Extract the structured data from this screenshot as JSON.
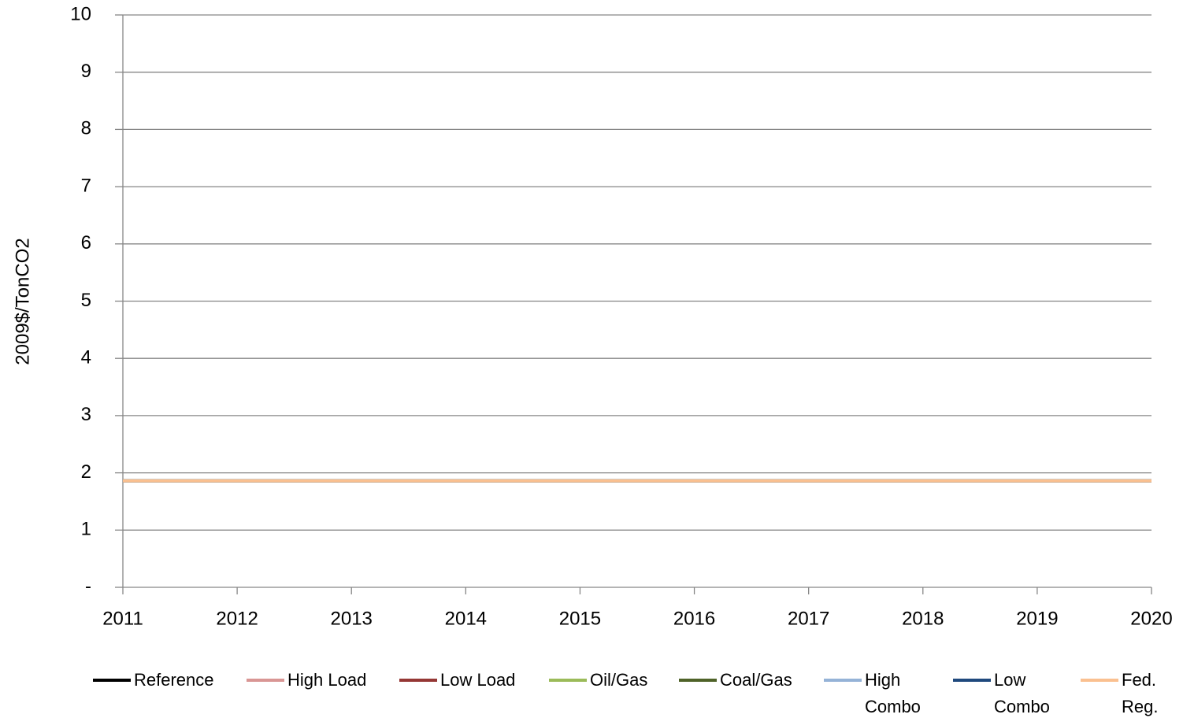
{
  "chart_data": {
    "type": "line",
    "y_label": "2009$/TonCO2",
    "x": [
      2011,
      2012,
      2013,
      2014,
      2015,
      2016,
      2017,
      2018,
      2019,
      2020
    ],
    "xlim": [
      2011,
      2020
    ],
    "xticks": [
      2011,
      2012,
      2013,
      2014,
      2015,
      2016,
      2017,
      2018,
      2019,
      2020
    ],
    "ylim": [
      0,
      10
    ],
    "yticks": [
      {
        "value": 0,
        "label": "-"
      },
      1,
      2,
      3,
      4,
      5,
      6,
      7,
      8,
      9,
      10
    ],
    "grid": true,
    "legend": "bottom",
    "series": [
      {
        "name": "Reference",
        "color": "#000000",
        "values": [
          1.86,
          1.86,
          1.86,
          1.86,
          1.86,
          1.86,
          1.86,
          1.86,
          1.86,
          1.86
        ]
      },
      {
        "name": "High Load",
        "color": "#d99694",
        "values": [
          1.86,
          1.86,
          1.86,
          1.86,
          1.86,
          1.86,
          1.86,
          1.86,
          1.86,
          1.86
        ]
      },
      {
        "name": "Low Load",
        "color": "#953735",
        "values": [
          1.86,
          1.86,
          1.86,
          1.86,
          1.86,
          1.86,
          1.86,
          1.86,
          1.86,
          1.86
        ]
      },
      {
        "name": "Oil/Gas",
        "color": "#9bbb59",
        "values": [
          1.86,
          1.86,
          1.86,
          1.86,
          1.86,
          1.86,
          1.86,
          1.86,
          1.86,
          1.86
        ]
      },
      {
        "name": "Coal/Gas",
        "color": "#4f6228",
        "values": [
          1.86,
          1.86,
          1.86,
          1.86,
          1.86,
          1.86,
          1.86,
          1.86,
          1.86,
          1.86
        ]
      },
      {
        "name": "High Combo",
        "color": "#95b3d7",
        "values": [
          1.86,
          1.86,
          1.86,
          1.86,
          1.86,
          1.86,
          1.86,
          1.86,
          1.86,
          1.86
        ]
      },
      {
        "name": "Low Combo",
        "color": "#1f497d",
        "values": [
          1.86,
          1.86,
          1.86,
          1.86,
          1.86,
          1.86,
          1.86,
          1.86,
          1.86,
          1.86
        ]
      },
      {
        "name": "Fed. Reg.",
        "color": "#fac090",
        "values": [
          1.86,
          1.86,
          1.86,
          1.86,
          1.86,
          1.86,
          1.86,
          1.86,
          1.86,
          1.86
        ]
      }
    ]
  }
}
